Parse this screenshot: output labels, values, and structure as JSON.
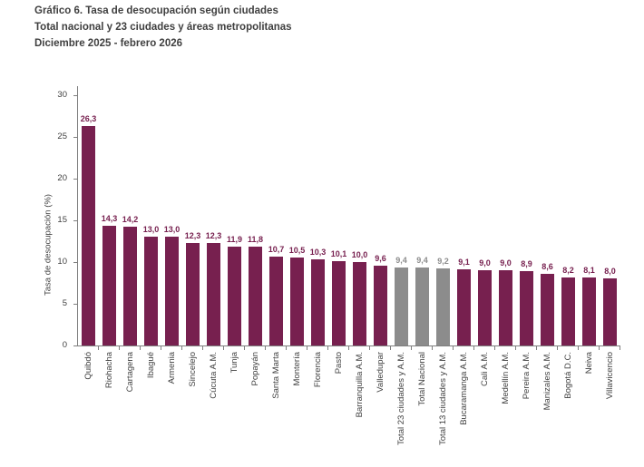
{
  "title": {
    "line1": "Gráfico 6. Tasa de desocupación según ciudades",
    "line2": "Total nacional y 23 ciudades y áreas metropolitanas",
    "line3": "Diciembre 2025 - febrero 2026"
  },
  "chart_data": {
    "type": "bar",
    "title": "Gráfico 6. Tasa de desocupación según ciudades",
    "subtitle": "Total nacional y 23 ciudades y áreas metropolitanas",
    "period": "Diciembre 2025 - febrero 2026",
    "xlabel": "",
    "ylabel": "Tasa de desocupación (%)",
    "ylim": [
      0,
      30
    ],
    "yticks": [
      0,
      5,
      10,
      15,
      20,
      25,
      30
    ],
    "grid": false,
    "legend": "none",
    "bar_color_city": "#77204f",
    "bar_color_total": "#8c8c8c",
    "axis_color": "#7f7f7f",
    "text_color": "#404040",
    "bars": [
      {
        "label": "Quibdó",
        "value": 26.3,
        "display": "26,3",
        "kind": "city"
      },
      {
        "label": "Riohacha",
        "value": 14.3,
        "display": "14,3",
        "kind": "city"
      },
      {
        "label": "Cartagena",
        "value": 14.2,
        "display": "14,2",
        "kind": "city"
      },
      {
        "label": "Ibagué",
        "value": 13.0,
        "display": "13,0",
        "kind": "city"
      },
      {
        "label": "Armenia",
        "value": 13.0,
        "display": "13,0",
        "kind": "city"
      },
      {
        "label": "Sincelejo",
        "value": 12.3,
        "display": "12,3",
        "kind": "city"
      },
      {
        "label": "Cúcuta A.M.",
        "value": 12.3,
        "display": "12,3",
        "kind": "city"
      },
      {
        "label": "Tunja",
        "value": 11.9,
        "display": "11,9",
        "kind": "city"
      },
      {
        "label": "Popayán",
        "value": 11.8,
        "display": "11,8",
        "kind": "city"
      },
      {
        "label": "Santa Marta",
        "value": 10.7,
        "display": "10,7",
        "kind": "city"
      },
      {
        "label": "Montería",
        "value": 10.5,
        "display": "10,5",
        "kind": "city"
      },
      {
        "label": "Florencia",
        "value": 10.3,
        "display": "10,3",
        "kind": "city"
      },
      {
        "label": "Pasto",
        "value": 10.1,
        "display": "10,1",
        "kind": "city"
      },
      {
        "label": "Barranquilla A.M.",
        "value": 10.0,
        "display": "10,0",
        "kind": "city"
      },
      {
        "label": "Valledupar",
        "value": 9.6,
        "display": "9,6",
        "kind": "city"
      },
      {
        "label": "Total 23 ciudades y A.M.",
        "value": 9.4,
        "display": "9,4",
        "kind": "total"
      },
      {
        "label": "Total Nacional",
        "value": 9.4,
        "display": "9,4",
        "kind": "total"
      },
      {
        "label": "Total 13 ciudades y A.M.",
        "value": 9.2,
        "display": "9,2",
        "kind": "total"
      },
      {
        "label": "Bucaramanga A.M.",
        "value": 9.1,
        "display": "9,1",
        "kind": "city"
      },
      {
        "label": "Cali A.M.",
        "value": 9.0,
        "display": "9,0",
        "kind": "city"
      },
      {
        "label": "Medellín A.M.",
        "value": 9.0,
        "display": "9,0",
        "kind": "city"
      },
      {
        "label": "Pereira A.M.",
        "value": 8.9,
        "display": "8,9",
        "kind": "city"
      },
      {
        "label": "Manizales A.M.",
        "value": 8.6,
        "display": "8,6",
        "kind": "city"
      },
      {
        "label": "Bogotá D.C.",
        "value": 8.2,
        "display": "8,2",
        "kind": "city"
      },
      {
        "label": "Neiva",
        "value": 8.1,
        "display": "8,1",
        "kind": "city"
      },
      {
        "label": "Villavicencio",
        "value": 8.0,
        "display": "8,0",
        "kind": "city"
      }
    ]
  }
}
